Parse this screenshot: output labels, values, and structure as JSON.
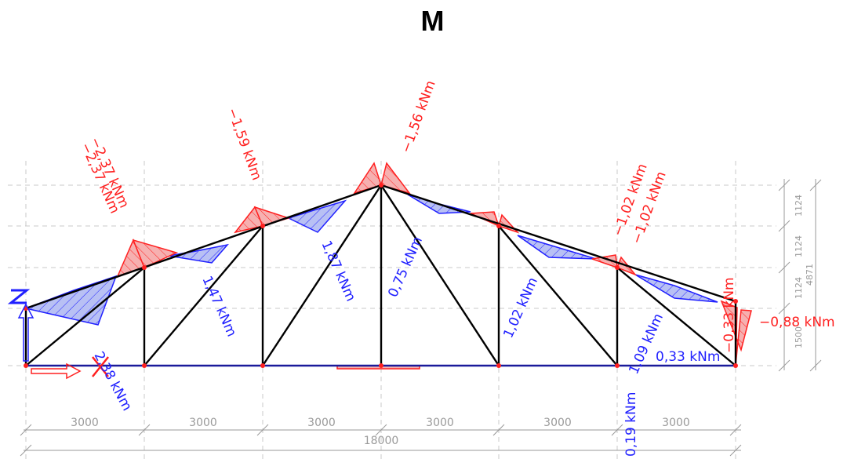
{
  "title": "M",
  "moment_labels": [
    {
      "text": "−2,37 kNm",
      "tone": "negative"
    },
    {
      "text": "−2,37 kNm",
      "tone": "negative"
    },
    {
      "text": "−1,59 kNm",
      "tone": "negative"
    },
    {
      "text": "−1,56 kNm",
      "tone": "negative"
    },
    {
      "text": "−1,02 kNm",
      "tone": "negative"
    },
    {
      "text": "−1,02 kNm",
      "tone": "negative"
    },
    {
      "text": "−0,33 kNm",
      "tone": "negative"
    },
    {
      "text": "−0,88 kNm",
      "tone": "negative"
    },
    {
      "text": "1,47 kNm",
      "tone": "positive"
    },
    {
      "text": "1,87 kNm",
      "tone": "positive"
    },
    {
      "text": "0,75 kNm",
      "tone": "positive"
    },
    {
      "text": "1,02 kNm",
      "tone": "positive"
    },
    {
      "text": "1,09 kNm",
      "tone": "positive"
    },
    {
      "text": "0,33 kNm",
      "tone": "positive"
    },
    {
      "text": "0,19 kNm",
      "tone": "positive"
    },
    {
      "text": "2,38 kNm",
      "tone": "positive"
    }
  ],
  "dimensions": {
    "spans": [
      "3000",
      "3000",
      "3000",
      "3000",
      "3000",
      "3000"
    ],
    "total": "18000",
    "heights": [
      "1124",
      "1124",
      "1124",
      "1500"
    ],
    "total_height": "4871"
  },
  "colors": {
    "negative": "#ff2020",
    "negative_fill": "#f6b0b0",
    "positive": "#2020ff",
    "positive_fill": "#b8c0f4",
    "member": "#000000",
    "grid": "#c8c8c8",
    "dimension": "#9a9a9a"
  }
}
